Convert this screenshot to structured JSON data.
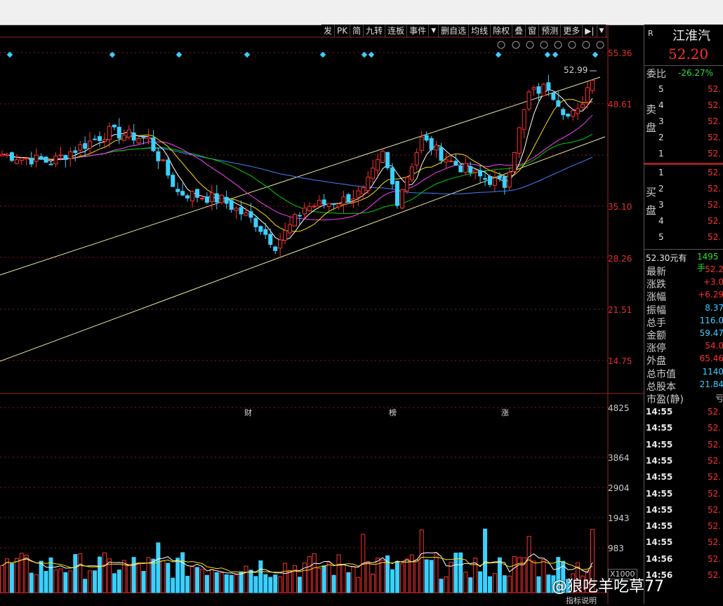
{
  "toolbar": {
    "items": [
      "发",
      "PK",
      "简",
      "九转",
      "连板",
      "事件",
      "▼",
      "删自选",
      "均线",
      "除权",
      "叠",
      "窗",
      "预测",
      "更多",
      "▶|",
      "▼"
    ]
  },
  "price_axis": {
    "labels": [
      "55.36",
      "48.61",
      "35.10",
      "28.26",
      "21.51",
      "14.75"
    ]
  },
  "last_price_label": "52.99",
  "volume_axis": {
    "labels": [
      "4825",
      "3864",
      "2904",
      "1943",
      "983"
    ],
    "multiplier": "X1000"
  },
  "events": [
    "财",
    "榜",
    "涨"
  ],
  "indicator_button": "指标说明",
  "watermark": "@狼吃羊吃草77",
  "panel": {
    "badge": "R",
    "name": "江淮汽",
    "price": "52.20",
    "weibi_label": "委比",
    "weibi_value": "-26.27%",
    "sell_label": [
      "卖",
      "盘"
    ],
    "buy_label": [
      "买",
      "盘"
    ],
    "sell_rows": [
      {
        "n": "5",
        "p": "52."
      },
      {
        "n": "4",
        "p": "52."
      },
      {
        "n": "3",
        "p": "52."
      },
      {
        "n": "2",
        "p": "52."
      },
      {
        "n": "1",
        "p": "52."
      }
    ],
    "buy_rows": [
      {
        "n": "1",
        "p": "52."
      },
      {
        "n": "2",
        "p": "52."
      },
      {
        "n": "3",
        "p": "52."
      },
      {
        "n": "4",
        "p": "52."
      },
      {
        "n": "5",
        "p": "52."
      }
    ],
    "summary_left": "52.30元有",
    "summary_right": "1495手",
    "stats": [
      {
        "label": "最新",
        "value": "52.2",
        "color": "#ff3030"
      },
      {
        "label": "涨跌",
        "value": "+3.0",
        "color": "#ff3030"
      },
      {
        "label": "涨幅",
        "value": "+6.29",
        "color": "#ff3030"
      },
      {
        "label": "振幅",
        "value": "8.37",
        "color": "#3ad0ff"
      },
      {
        "label": "总手",
        "value": "116.0",
        "color": "#3ad0ff"
      },
      {
        "label": "金额",
        "value": "59.47",
        "color": "#3ad0ff"
      },
      {
        "label": "涨停",
        "value": "54.0",
        "color": "#ff3030"
      },
      {
        "label": "外盘",
        "value": "65.46",
        "color": "#ff3030"
      },
      {
        "label": "总市值",
        "value": "1140",
        "color": "#3ad0ff"
      },
      {
        "label": "总股本",
        "value": "21.84",
        "color": "#3ad0ff"
      },
      {
        "label": "市盈(静)",
        "value": "亏",
        "color": "#ccc"
      }
    ],
    "ticks": [
      {
        "t": "14:55",
        "p": "52."
      },
      {
        "t": "14:55",
        "p": "52."
      },
      {
        "t": "14:55",
        "p": "52."
      },
      {
        "t": "14:55",
        "p": "52."
      },
      {
        "t": "14:55",
        "p": "52."
      },
      {
        "t": "14:55",
        "p": "52."
      },
      {
        "t": "14:55",
        "p": "52."
      },
      {
        "t": "14:55",
        "p": "52."
      },
      {
        "t": "14:55",
        "p": "52."
      },
      {
        "t": "14:56",
        "p": "52."
      },
      {
        "t": "14:56",
        "p": "52."
      }
    ]
  },
  "colors": {
    "up": "#ff3030",
    "down": "#3ad0ff",
    "ma5": "#ffffff",
    "ma10": "#ffe000",
    "ma20": "#ff40ff",
    "ma30": "#00d000",
    "ma60": "#4080ff",
    "channel": "#e8e8a0"
  }
}
